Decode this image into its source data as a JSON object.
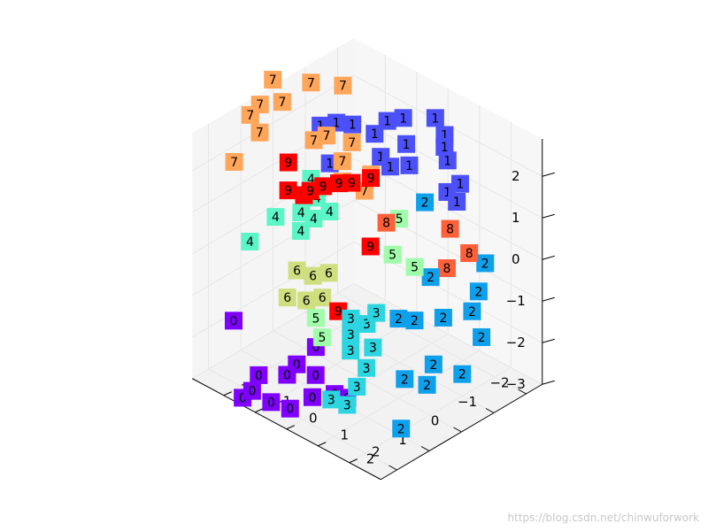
{
  "chart_data": {
    "type": "scatter",
    "projection": "3d",
    "title": "",
    "xlabel": "",
    "ylabel": "",
    "zlabel": "",
    "grid": true,
    "legend": "none",
    "z_ticks": [
      "2",
      "1",
      "0",
      "−1",
      "−2",
      "−3"
    ],
    "x_ticks": [
      "−2",
      "−1",
      "0",
      "1",
      "2"
    ],
    "y_ticks": [
      "−2",
      "−1",
      "0",
      "1",
      "2"
    ],
    "class_colors": {
      "0": "#7f00ff",
      "1": "#4c50f9",
      "2": "#0fa0eb",
      "3": "#2cd5df",
      "4": "#5cf6c6",
      "5": "#9ffcaa",
      "6": "#cfdf7f",
      "7": "#ffa65b",
      "8": "#ff6039",
      "9": "#ff0000"
    },
    "points": [
      {
        "label": "1",
        "x": -2.2,
        "y": 0.2,
        "z": 2.0
      },
      {
        "label": "1",
        "x": -2.3,
        "y": -0.2,
        "z": 2.2
      },
      {
        "label": "1",
        "x": -2.0,
        "y": 0.5,
        "z": 1.6
      },
      {
        "label": "1",
        "x": -1.6,
        "y": -0.5,
        "z": 2.4
      },
      {
        "label": "1",
        "x": -1.4,
        "y": -0.8,
        "z": 2.3
      },
      {
        "label": "1",
        "x": -1.2,
        "y": -1.0,
        "z": 2.0
      },
      {
        "label": "1",
        "x": -0.9,
        "y": -1.4,
        "z": 2.2
      },
      {
        "label": "1",
        "x": -1.5,
        "y": -0.3,
        "z": 1.9
      },
      {
        "label": "1",
        "x": -2.1,
        "y": 0.3,
        "z": 1.8
      },
      {
        "label": "1",
        "x": -0.6,
        "y": -1.6,
        "z": 2.3
      },
      {
        "label": "1",
        "x": -0.4,
        "y": -1.9,
        "z": 2.2
      },
      {
        "label": "1",
        "x": -1.0,
        "y": -0.6,
        "z": 1.7
      },
      {
        "label": "1",
        "x": -1.3,
        "y": 0.0,
        "z": 1.6
      },
      {
        "label": "1",
        "x": -2.0,
        "y": 0.9,
        "z": 1.2
      },
      {
        "label": "1",
        "x": -1.7,
        "y": 0.8,
        "z": 1.1
      },
      {
        "label": "1",
        "x": -1.8,
        "y": 1.0,
        "z": 0.9
      },
      {
        "label": "1",
        "x": -0.3,
        "y": -1.5,
        "z": 1.5
      },
      {
        "label": "1",
        "x": -1.1,
        "y": -0.4,
        "z": 1.5
      },
      {
        "label": "2",
        "x": -1.2,
        "y": 0.6,
        "z": 1.0
      },
      {
        "label": "2",
        "x": -1.9,
        "y": 1.8,
        "z": -0.3
      },
      {
        "label": "2",
        "x": -1.6,
        "y": 1.9,
        "z": -0.8
      },
      {
        "label": "2",
        "x": -1.3,
        "y": 2.0,
        "z": -1.1
      },
      {
        "label": "2",
        "x": -0.6,
        "y": 1.4,
        "z": -0.2
      },
      {
        "label": "2",
        "x": -0.7,
        "y": 1.7,
        "z": -1.1
      },
      {
        "label": "2",
        "x": -0.2,
        "y": 1.3,
        "z": -1.1
      },
      {
        "label": "2",
        "x": 0.1,
        "y": 1.1,
        "z": -1.0
      },
      {
        "label": "2",
        "x": -1.3,
        "y": 2.3,
        "z": -1.6
      },
      {
        "label": "2",
        "x": -0.3,
        "y": 1.8,
        "z": -2.0
      },
      {
        "label": "2",
        "x": -0.1,
        "y": 1.8,
        "z": -2.4
      },
      {
        "label": "2",
        "x": 0.3,
        "y": 1.5,
        "z": -2.2
      },
      {
        "label": "2",
        "x": 0.8,
        "y": 1.9,
        "z": -3.0
      },
      {
        "label": "2",
        "x": -0.8,
        "y": 2.2,
        "z": -2.3
      },
      {
        "label": "3",
        "x": 0.5,
        "y": 0.8,
        "z": -0.8
      },
      {
        "label": "3",
        "x": 0.6,
        "y": 0.6,
        "z": -1.1
      },
      {
        "label": "3",
        "x": 0.8,
        "y": 0.3,
        "z": -1.0
      },
      {
        "label": "3",
        "x": 1.0,
        "y": 0.5,
        "z": -1.6
      },
      {
        "label": "3",
        "x": 0.9,
        "y": 0.9,
        "z": -1.9
      },
      {
        "label": "3",
        "x": 1.1,
        "y": 0.8,
        "z": -2.3
      },
      {
        "label": "3",
        "x": 1.4,
        "y": 0.8,
        "z": -2.6
      },
      {
        "label": "3",
        "x": 1.6,
        "y": 0.5,
        "z": -2.5
      },
      {
        "label": "3",
        "x": 0.9,
        "y": 0.4,
        "z": -1.3
      },
      {
        "label": "3",
        "x": 0.7,
        "y": 0.9,
        "z": -1.5
      },
      {
        "label": "4",
        "x": 0.2,
        "y": -1.5,
        "z": 0.4
      },
      {
        "label": "4",
        "x": 0.0,
        "y": -1.2,
        "z": 0.6
      },
      {
        "label": "4",
        "x": -0.2,
        "y": -1.8,
        "z": 0.6
      },
      {
        "label": "4",
        "x": -0.4,
        "y": -2.2,
        "z": 0.8
      },
      {
        "label": "4",
        "x": 0.1,
        "y": -2.0,
        "z": 0.3
      },
      {
        "label": "4",
        "x": 0.5,
        "y": -1.6,
        "z": 0.2
      },
      {
        "label": "4",
        "x": 0.6,
        "y": -2.3,
        "z": 0.3
      },
      {
        "label": "4",
        "x": 1.2,
        "y": -2.5,
        "z": -0.1
      },
      {
        "label": "5",
        "x": -0.6,
        "y": 0.4,
        "z": 0.8
      },
      {
        "label": "5",
        "x": -0.3,
        "y": 1.2,
        "z": 0.1
      },
      {
        "label": "5",
        "x": -0.2,
        "y": 0.6,
        "z": 0.2
      },
      {
        "label": "5",
        "x": 1.3,
        "y": -0.3,
        "z": -1.0
      },
      {
        "label": "5",
        "x": 1.4,
        "y": 0.0,
        "z": -1.3
      },
      {
        "label": "6",
        "x": 0.9,
        "y": -0.3,
        "z": -0.1
      },
      {
        "label": "6",
        "x": 1.1,
        "y": -0.6,
        "z": -0.2
      },
      {
        "label": "6",
        "x": 1.3,
        "y": -0.9,
        "z": -0.1
      },
      {
        "label": "6",
        "x": 1.1,
        "y": -0.3,
        "z": -0.6
      },
      {
        "label": "6",
        "x": 1.3,
        "y": -0.6,
        "z": -0.7
      },
      {
        "label": "6",
        "x": 1.5,
        "y": -1.0,
        "z": -0.7
      },
      {
        "label": "7",
        "x": -0.8,
        "y": -1.6,
        "z": 3.1
      },
      {
        "label": "7",
        "x": -0.3,
        "y": -2.1,
        "z": 3.2
      },
      {
        "label": "7",
        "x": 0.3,
        "y": -2.7,
        "z": 3.3
      },
      {
        "label": "7",
        "x": 0.2,
        "y": -2.5,
        "z": 2.8
      },
      {
        "label": "7",
        "x": -0.4,
        "y": -0.9,
        "z": 2.2
      },
      {
        "label": "7",
        "x": 0.6,
        "y": -2.8,
        "z": 2.8
      },
      {
        "label": "7",
        "x": 0.8,
        "y": -2.9,
        "z": 2.6
      },
      {
        "label": "7",
        "x": -0.1,
        "y": -1.4,
        "z": 2.3
      },
      {
        "label": "7",
        "x": 0.1,
        "y": -1.6,
        "z": 2.2
      },
      {
        "label": "7",
        "x": 0.8,
        "y": -2.6,
        "z": 2.3
      },
      {
        "label": "7",
        "x": 1.3,
        "y": -2.9,
        "z": 1.7
      },
      {
        "label": "7",
        "x": -0.6,
        "y": -0.5,
        "z": 1.5
      },
      {
        "label": "7",
        "x": -0.4,
        "y": -0.5,
        "z": 1.2
      },
      {
        "label": "7",
        "x": -0.1,
        "y": -0.9,
        "z": 1.4
      },
      {
        "label": "7",
        "x": -0.2,
        "y": -1.0,
        "z": 1.8
      },
      {
        "label": "8",
        "x": -1.3,
        "y": 1.3,
        "z": 0.6
      },
      {
        "label": "8",
        "x": -1.6,
        "y": 1.6,
        "z": 0.0
      },
      {
        "label": "8",
        "x": -1.2,
        "y": 1.3,
        "z": -0.3
      },
      {
        "label": "8",
        "x": -0.3,
        "y": 0.3,
        "z": 0.8
      },
      {
        "label": "9",
        "x": -0.5,
        "y": -0.4,
        "z": 1.5
      },
      {
        "label": "9",
        "x": -0.2,
        "y": -0.7,
        "z": 1.4
      },
      {
        "label": "9",
        "x": 0.0,
        "y": -0.9,
        "z": 1.4
      },
      {
        "label": "9",
        "x": 0.2,
        "y": -1.2,
        "z": 1.3
      },
      {
        "label": "9",
        "x": 0.4,
        "y": -1.4,
        "z": 1.2
      },
      {
        "label": "9",
        "x": 0.5,
        "y": -1.5,
        "z": 1.1
      },
      {
        "label": "9",
        "x": 0.6,
        "y": -1.9,
        "z": 1.1
      },
      {
        "label": "9",
        "x": 0.4,
        "y": -2.1,
        "z": 1.6
      },
      {
        "label": "9",
        "x": -0.1,
        "y": 0.0,
        "z": 0.2
      },
      {
        "label": "9",
        "x": 0.9,
        "y": 0.0,
        "z": -0.9
      },
      {
        "label": "0",
        "x": 1.3,
        "y": -0.3,
        "z": -1.7
      },
      {
        "label": "0",
        "x": 1.5,
        "y": -0.1,
        "z": -2.2
      },
      {
        "label": "0",
        "x": 1.7,
        "y": 0.0,
        "z": -2.6
      },
      {
        "label": "0",
        "x": 1.6,
        "y": -0.6,
        "z": -2.1
      },
      {
        "label": "0",
        "x": 1.8,
        "y": -0.7,
        "z": -2.3
      },
      {
        "label": "0",
        "x": 2.0,
        "y": -0.4,
        "z": -2.9
      },
      {
        "label": "0",
        "x": 2.1,
        "y": -0.9,
        "z": -2.9
      },
      {
        "label": "0",
        "x": 2.3,
        "y": -1.3,
        "z": -2.7
      },
      {
        "label": "0",
        "x": 2.4,
        "y": -1.5,
        "z": -2.9
      },
      {
        "label": "0",
        "x": 2.0,
        "y": -1.4,
        "z": -2.5
      },
      {
        "label": "0",
        "x": 1.9,
        "y": -2.3,
        "z": -1.6
      },
      {
        "label": "0",
        "x": 1.4,
        "y": 0.4,
        "z": -2.5
      },
      {
        "label": "0",
        "x": 1.2,
        "y": 0.6,
        "z": -2.6
      }
    ]
  },
  "watermark": "https://blog.csdn.net/chinwuforwork"
}
